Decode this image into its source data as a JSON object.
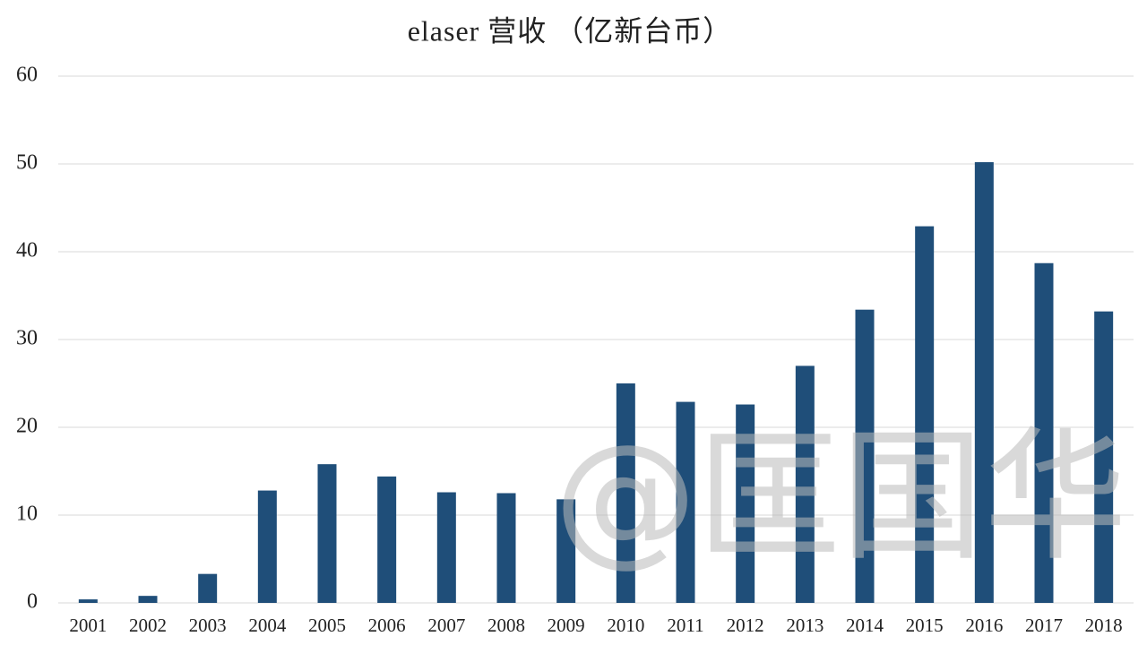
{
  "chart_data": {
    "type": "bar",
    "title": "elaser 营收 （亿新台币）",
    "categories": [
      "2001",
      "2002",
      "2003",
      "2004",
      "2005",
      "2006",
      "2007",
      "2008",
      "2009",
      "2010",
      "2011",
      "2012",
      "2013",
      "2014",
      "2015",
      "2016",
      "2017",
      "2018"
    ],
    "values": [
      0.4,
      0.8,
      3.3,
      12.8,
      15.8,
      14.4,
      12.6,
      12.5,
      11.8,
      25.0,
      22.9,
      22.6,
      27.0,
      33.4,
      42.9,
      50.2,
      38.7,
      33.2
    ],
    "color": "#1f4e79",
    "ylim": [
      0,
      60
    ],
    "yticks": [
      0,
      10,
      20,
      30,
      40,
      50,
      60
    ],
    "grid": true,
    "watermark": "@匡国华"
  }
}
